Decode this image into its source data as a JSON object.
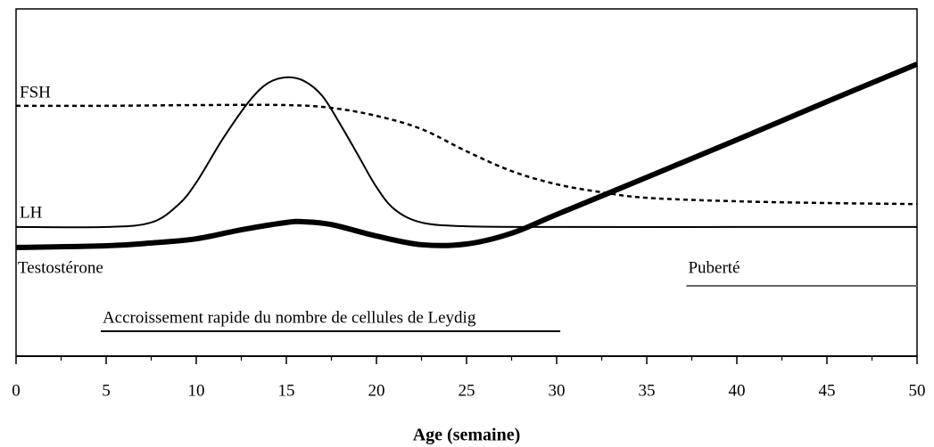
{
  "chart_data": {
    "type": "line",
    "xlabel": "Age (semaine)",
    "xlim": [
      0,
      50
    ],
    "xticks": [
      0,
      5,
      10,
      15,
      20,
      25,
      30,
      35,
      40,
      45,
      50
    ],
    "xminorticks": [
      2.5,
      7.5,
      12.5,
      17.5,
      22.5,
      27.5,
      32.5,
      37.5,
      42.5,
      47.5
    ],
    "ylim": [
      0,
      100
    ],
    "series": [
      {
        "name": "FSH",
        "color": "#000000",
        "style": "dashed",
        "x": [
          0,
          5,
          10,
          15,
          17.5,
          20,
          22.5,
          25,
          27.5,
          30,
          32.5,
          35,
          40,
          45,
          50
        ],
        "values": [
          72.1,
          72.1,
          72.3,
          72.3,
          71.5,
          69.2,
          65.4,
          59.0,
          53.3,
          49.5,
          47.2,
          45.6,
          44.6,
          44.1,
          43.8
        ]
      },
      {
        "name": "LH",
        "color": "#000000",
        "style": "thin",
        "x": [
          0,
          5,
          7.5,
          9,
          10,
          11.5,
          13,
          14,
          15,
          16,
          17,
          18,
          19,
          20,
          21,
          22.5,
          25,
          30,
          40,
          50
        ],
        "values": [
          37.2,
          37.2,
          38.5,
          43.6,
          50.0,
          62.8,
          73.8,
          78.7,
          80.3,
          79.2,
          74.9,
          66.7,
          57.7,
          48.7,
          42.3,
          38.5,
          37.4,
          37.2,
          37.2,
          37.2
        ]
      },
      {
        "name": "Testostérone",
        "color": "#000000",
        "style": "thick",
        "x": [
          0,
          5,
          7.5,
          10,
          12.5,
          15,
          16,
          17.5,
          20,
          22.5,
          25,
          27.5,
          30,
          35,
          40,
          45,
          50
        ],
        "values": [
          31.3,
          31.8,
          32.6,
          33.8,
          36.4,
          38.5,
          38.7,
          37.9,
          34.6,
          32.1,
          32.3,
          35.4,
          40.8,
          51.5,
          62.3,
          73.3,
          84.1
        ]
      }
    ],
    "annotations": [
      {
        "text": "Puberté",
        "x_range": [
          37.2,
          50
        ]
      },
      {
        "text": "Accroissement rapide du nombre de cellules de Leydig",
        "x_range": [
          4.7,
          30.2
        ]
      }
    ]
  }
}
